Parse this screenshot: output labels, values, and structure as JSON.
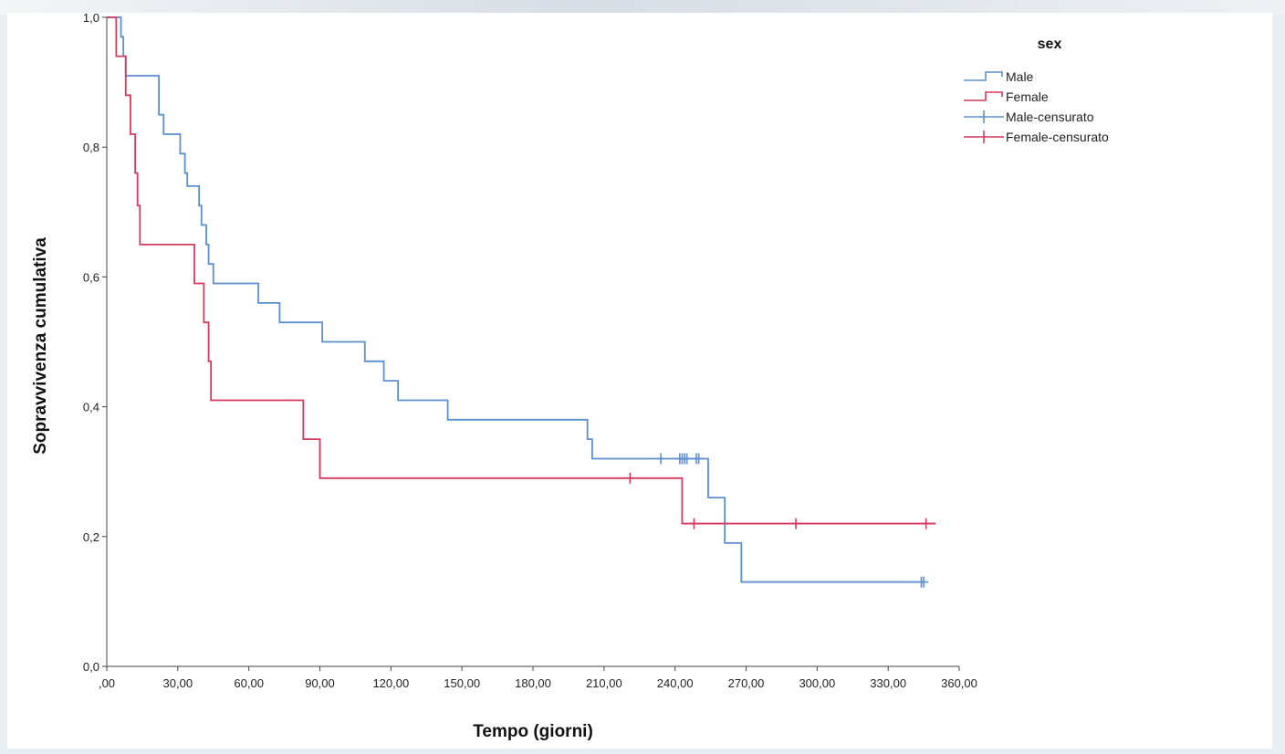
{
  "chart_data": {
    "type": "line",
    "subtype": "kaplan-meier step",
    "title": "",
    "xlabel": "Tempo (giorni)",
    "ylabel": "Sopravvivenza cumulativa",
    "xlim": [
      0,
      360
    ],
    "ylim": [
      0,
      1
    ],
    "x_ticks": [
      ",00",
      "30,00",
      "60,00",
      "90,00",
      "120,00",
      "150,00",
      "180,00",
      "210,00",
      "240,00",
      "270,00",
      "300,00",
      "330,00",
      "360,00"
    ],
    "y_ticks": [
      "0,0",
      "0,2",
      "0,4",
      "0,6",
      "0,8",
      "1,0"
    ],
    "grid": false,
    "legend_title": "sex",
    "legend_position": "top-right",
    "legend": [
      "Male",
      "Female",
      "Male-censurato",
      "Female-censurato"
    ],
    "series": [
      {
        "name": "Male",
        "color": "#5b8fd3",
        "steps": [
          [
            0,
            1.0
          ],
          [
            5,
            1.0
          ],
          [
            6,
            0.97
          ],
          [
            7,
            0.94
          ],
          [
            8,
            0.91
          ],
          [
            21,
            0.91
          ],
          [
            22,
            0.85
          ],
          [
            24,
            0.82
          ],
          [
            30,
            0.82
          ],
          [
            31,
            0.79
          ],
          [
            33,
            0.76
          ],
          [
            34,
            0.74
          ],
          [
            38,
            0.74
          ],
          [
            39,
            0.71
          ],
          [
            40,
            0.68
          ],
          [
            42,
            0.65
          ],
          [
            43,
            0.62
          ],
          [
            45,
            0.59
          ],
          [
            63,
            0.59
          ],
          [
            64,
            0.56
          ],
          [
            72,
            0.56
          ],
          [
            73,
            0.53
          ],
          [
            90,
            0.53
          ],
          [
            91,
            0.5
          ],
          [
            108,
            0.5
          ],
          [
            109,
            0.47
          ],
          [
            116,
            0.47
          ],
          [
            117,
            0.44
          ],
          [
            122,
            0.44
          ],
          [
            123,
            0.41
          ],
          [
            143,
            0.41
          ],
          [
            144,
            0.38
          ],
          [
            202,
            0.38
          ],
          [
            203,
            0.35
          ],
          [
            205,
            0.32
          ],
          [
            253,
            0.32
          ],
          [
            254,
            0.26
          ],
          [
            260,
            0.26
          ],
          [
            261,
            0.19
          ],
          [
            267,
            0.19
          ],
          [
            268,
            0.13
          ],
          [
            345,
            0.13
          ]
        ],
        "censored": [
          [
            234,
            0.32
          ],
          [
            242,
            0.32
          ],
          [
            243,
            0.32
          ],
          [
            244,
            0.32
          ],
          [
            245,
            0.32
          ],
          [
            249,
            0.32
          ],
          [
            250,
            0.32
          ],
          [
            344,
            0.13
          ],
          [
            345,
            0.13
          ]
        ]
      },
      {
        "name": "Female",
        "color": "#d43a5f",
        "steps": [
          [
            0,
            1.0
          ],
          [
            3,
            1.0
          ],
          [
            4,
            0.94
          ],
          [
            7,
            0.94
          ],
          [
            8,
            0.88
          ],
          [
            9,
            0.88
          ],
          [
            10,
            0.82
          ],
          [
            11,
            0.82
          ],
          [
            12,
            0.76
          ],
          [
            13,
            0.71
          ],
          [
            14,
            0.65
          ],
          [
            36,
            0.65
          ],
          [
            37,
            0.59
          ],
          [
            40,
            0.59
          ],
          [
            41,
            0.53
          ],
          [
            42,
            0.53
          ],
          [
            43,
            0.47
          ],
          [
            44,
            0.41
          ],
          [
            82,
            0.41
          ],
          [
            83,
            0.35
          ],
          [
            89,
            0.35
          ],
          [
            90,
            0.29
          ],
          [
            242,
            0.29
          ],
          [
            243,
            0.22
          ],
          [
            350,
            0.22
          ]
        ],
        "censored": [
          [
            221,
            0.29
          ],
          [
            248,
            0.22
          ],
          [
            291,
            0.22
          ],
          [
            346,
            0.22
          ]
        ]
      }
    ]
  }
}
